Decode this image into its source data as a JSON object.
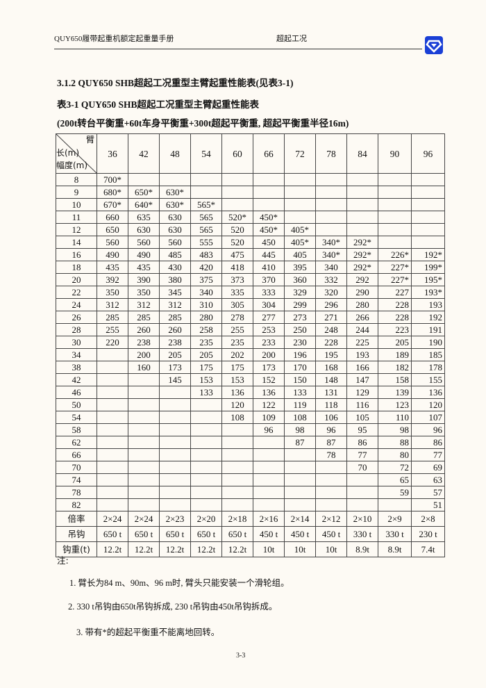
{
  "header": {
    "left": "QUY650履带起重机额定起重量手册",
    "middle": "超起工况",
    "logo_color": "#1a3fd6"
  },
  "section_title": "3.1.2 QUY650 SHB超起工况重型主臂起重性能表(见表3-1)",
  "table_title": "表3-1 QUY650 SHB超起工况重型主臂起重性能表",
  "table_condition": "(200t转台平衡重+60t车身平衡重+300t超起平衡重, 超起平衡重半径16m)",
  "table": {
    "corner_top": "臂",
    "corner_mid": "长(m)",
    "corner_bottom": "幅度(m)",
    "boom_lengths": [
      "36",
      "42",
      "48",
      "54",
      "60",
      "66",
      "72",
      "78",
      "84",
      "90",
      "96"
    ],
    "rows": [
      {
        "radius": "8",
        "values": [
          "700*",
          "",
          "",
          "",
          "",
          "",
          "",
          "",
          "",
          "",
          ""
        ]
      },
      {
        "radius": "9",
        "values": [
          "680*",
          "650*",
          "630*",
          "",
          "",
          "",
          "",
          "",
          "",
          "",
          ""
        ]
      },
      {
        "radius": "10",
        "values": [
          "670*",
          "640*",
          "630*",
          "565*",
          "",
          "",
          "",
          "",
          "",
          "",
          ""
        ]
      },
      {
        "radius": "11",
        "values": [
          "660",
          "635",
          "630",
          "565",
          "520*",
          "450*",
          "",
          "",
          "",
          "",
          ""
        ]
      },
      {
        "radius": "12",
        "values": [
          "650",
          "630",
          "630",
          "565",
          "520",
          "450*",
          "405*",
          "",
          "",
          "",
          ""
        ]
      },
      {
        "radius": "14",
        "values": [
          "560",
          "560",
          "560",
          "555",
          "520",
          "450",
          "405*",
          "340*",
          "292*",
          "",
          ""
        ]
      },
      {
        "radius": "16",
        "values": [
          "490",
          "490",
          "485",
          "483",
          "475",
          "445",
          "405",
          "340*",
          "292*",
          "226*",
          "192*"
        ]
      },
      {
        "radius": "18",
        "values": [
          "435",
          "435",
          "430",
          "420",
          "418",
          "410",
          "395",
          "340",
          "292*",
          "227*",
          "199*"
        ]
      },
      {
        "radius": "20",
        "values": [
          "392",
          "390",
          "380",
          "375",
          "373",
          "370",
          "360",
          "332",
          "292",
          "227*",
          "195*"
        ]
      },
      {
        "radius": "22",
        "values": [
          "350",
          "350",
          "345",
          "340",
          "335",
          "333",
          "329",
          "320",
          "290",
          "227",
          "193*"
        ]
      },
      {
        "radius": "24",
        "values": [
          "312",
          "312",
          "312",
          "310",
          "305",
          "304",
          "299",
          "296",
          "280",
          "228",
          "193"
        ]
      },
      {
        "radius": "26",
        "values": [
          "285",
          "285",
          "285",
          "280",
          "278",
          "277",
          "273",
          "271",
          "266",
          "228",
          "192"
        ]
      },
      {
        "radius": "28",
        "values": [
          "255",
          "260",
          "260",
          "258",
          "255",
          "253",
          "250",
          "248",
          "244",
          "223",
          "191"
        ]
      },
      {
        "radius": "30",
        "values": [
          "220",
          "238",
          "238",
          "235",
          "235",
          "233",
          "230",
          "228",
          "225",
          "205",
          "190"
        ]
      },
      {
        "radius": "34",
        "values": [
          "",
          "200",
          "205",
          "205",
          "202",
          "200",
          "196",
          "195",
          "193",
          "189",
          "185"
        ]
      },
      {
        "radius": "38",
        "values": [
          "",
          "160",
          "173",
          "175",
          "175",
          "173",
          "170",
          "168",
          "166",
          "182",
          "178"
        ]
      },
      {
        "radius": "42",
        "values": [
          "",
          "",
          "145",
          "153",
          "153",
          "152",
          "150",
          "148",
          "147",
          "158",
          "155"
        ]
      },
      {
        "radius": "46",
        "values": [
          "",
          "",
          "",
          "133",
          "136",
          "136",
          "133",
          "131",
          "129",
          "139",
          "136"
        ]
      },
      {
        "radius": "50",
        "values": [
          "",
          "",
          "",
          "",
          "120",
          "122",
          "119",
          "118",
          "116",
          "123",
          "120"
        ]
      },
      {
        "radius": "54",
        "values": [
          "",
          "",
          "",
          "",
          "108",
          "109",
          "108",
          "106",
          "105",
          "110",
          "107"
        ]
      },
      {
        "radius": "58",
        "values": [
          "",
          "",
          "",
          "",
          "",
          "96",
          "98",
          "96",
          "95",
          "98",
          "96"
        ]
      },
      {
        "radius": "62",
        "values": [
          "",
          "",
          "",
          "",
          "",
          "",
          "87",
          "87",
          "86",
          "88",
          "86"
        ]
      },
      {
        "radius": "66",
        "values": [
          "",
          "",
          "",
          "",
          "",
          "",
          "",
          "78",
          "77",
          "80",
          "77"
        ]
      },
      {
        "radius": "70",
        "values": [
          "",
          "",
          "",
          "",
          "",
          "",
          "",
          "",
          "70",
          "72",
          "69"
        ]
      },
      {
        "radius": "74",
        "values": [
          "",
          "",
          "",
          "",
          "",
          "",
          "",
          "",
          "",
          "65",
          "63"
        ]
      },
      {
        "radius": "78",
        "values": [
          "",
          "",
          "",
          "",
          "",
          "",
          "",
          "",
          "",
          "59",
          "57"
        ]
      },
      {
        "radius": "82",
        "values": [
          "",
          "",
          "",
          "",
          "",
          "",
          "",
          "",
          "",
          "",
          "51"
        ]
      }
    ],
    "footer_rows": [
      {
        "label": "倍率",
        "values": [
          "2×24",
          "2×24",
          "2×23",
          "2×20",
          "2×18",
          "2×16",
          "2×14",
          "2×12",
          "2×10",
          "2×9",
          "2×8"
        ]
      },
      {
        "label": "吊钩",
        "values": [
          "650 t",
          "650 t",
          "650 t",
          "650 t",
          "650 t",
          "450 t",
          "450 t",
          "450 t",
          "330 t",
          "330 t",
          "230 t"
        ]
      },
      {
        "label": "钩重(t)",
        "values": [
          "12.2t",
          "12.2t",
          "12.2t",
          "12.2t",
          "12.2t",
          "10t",
          "10t",
          "10t",
          "8.9t",
          "8.9t",
          "7.4t"
        ]
      }
    ]
  },
  "notes": {
    "title": "注:",
    "items": [
      "1. 臂长为84 m、90m、96 m时, 臂头只能安装一个滑轮组。",
      "2. 330 t吊钩由650t吊钩拆成, 230 t吊钩由450t吊钩拆成。",
      "3. 带有*的超起平衡重不能离地回转。"
    ]
  },
  "page_number": "3-3"
}
